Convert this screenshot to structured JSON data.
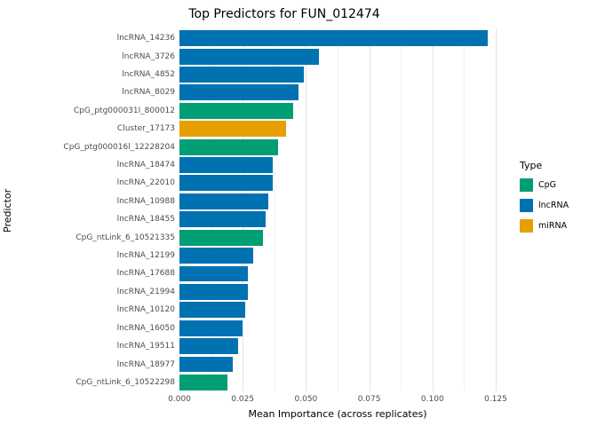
{
  "chart_data": {
    "type": "bar",
    "orientation": "horizontal",
    "title": "Top Predictors for FUN_012474",
    "xlabel": "Mean Importance (across replicates)",
    "ylabel": "Predictor",
    "xlim": [
      0,
      0.125
    ],
    "grid": true,
    "legend_position": "right",
    "x_ticks": [
      {
        "value": 0.0,
        "label": "0.000"
      },
      {
        "value": 0.025,
        "label": "0.025"
      },
      {
        "value": 0.05,
        "label": "0.050"
      },
      {
        "value": 0.075,
        "label": "0.075"
      },
      {
        "value": 0.1,
        "label": "0.100"
      },
      {
        "value": 0.125,
        "label": "0.125"
      }
    ],
    "legend": {
      "title": "Type",
      "entries": [
        {
          "label": "CpG",
          "color": "#009E73"
        },
        {
          "label": "lncRNA",
          "color": "#0072B2"
        },
        {
          "label": "miRNA",
          "color": "#E69F00"
        }
      ]
    },
    "bars": [
      {
        "label": "lncRNA_14236",
        "type": "lncRNA",
        "value": 0.122
      },
      {
        "label": "lncRNA_3726",
        "type": "lncRNA",
        "value": 0.055
      },
      {
        "label": "lncRNA_4852",
        "type": "lncRNA",
        "value": 0.049
      },
      {
        "label": "lncRNA_8029",
        "type": "lncRNA",
        "value": 0.047
      },
      {
        "label": "CpG_ptg000031l_800012",
        "type": "CpG",
        "value": 0.045
      },
      {
        "label": "Cluster_17173",
        "type": "miRNA",
        "value": 0.042
      },
      {
        "label": "CpG_ptg000016l_12228204",
        "type": "CpG",
        "value": 0.039
      },
      {
        "label": "lncRNA_18474",
        "type": "lncRNA",
        "value": 0.037
      },
      {
        "label": "lncRNA_22010",
        "type": "lncRNA",
        "value": 0.037
      },
      {
        "label": "lncRNA_10988",
        "type": "lncRNA",
        "value": 0.035
      },
      {
        "label": "lncRNA_18455",
        "type": "lncRNA",
        "value": 0.034
      },
      {
        "label": "CpG_ntLink_6_10521335",
        "type": "CpG",
        "value": 0.033
      },
      {
        "label": "lncRNA_12199",
        "type": "lncRNA",
        "value": 0.029
      },
      {
        "label": "lncRNA_17688",
        "type": "lncRNA",
        "value": 0.027
      },
      {
        "label": "lncRNA_21994",
        "type": "lncRNA",
        "value": 0.027
      },
      {
        "label": "lncRNA_10120",
        "type": "lncRNA",
        "value": 0.026
      },
      {
        "label": "lncRNA_16050",
        "type": "lncRNA",
        "value": 0.025
      },
      {
        "label": "lncRNA_19511",
        "type": "lncRNA",
        "value": 0.023
      },
      {
        "label": "lncRNA_18977",
        "type": "lncRNA",
        "value": 0.021
      },
      {
        "label": "CpG_ntLink_6_10522298",
        "type": "CpG",
        "value": 0.019
      }
    ]
  }
}
